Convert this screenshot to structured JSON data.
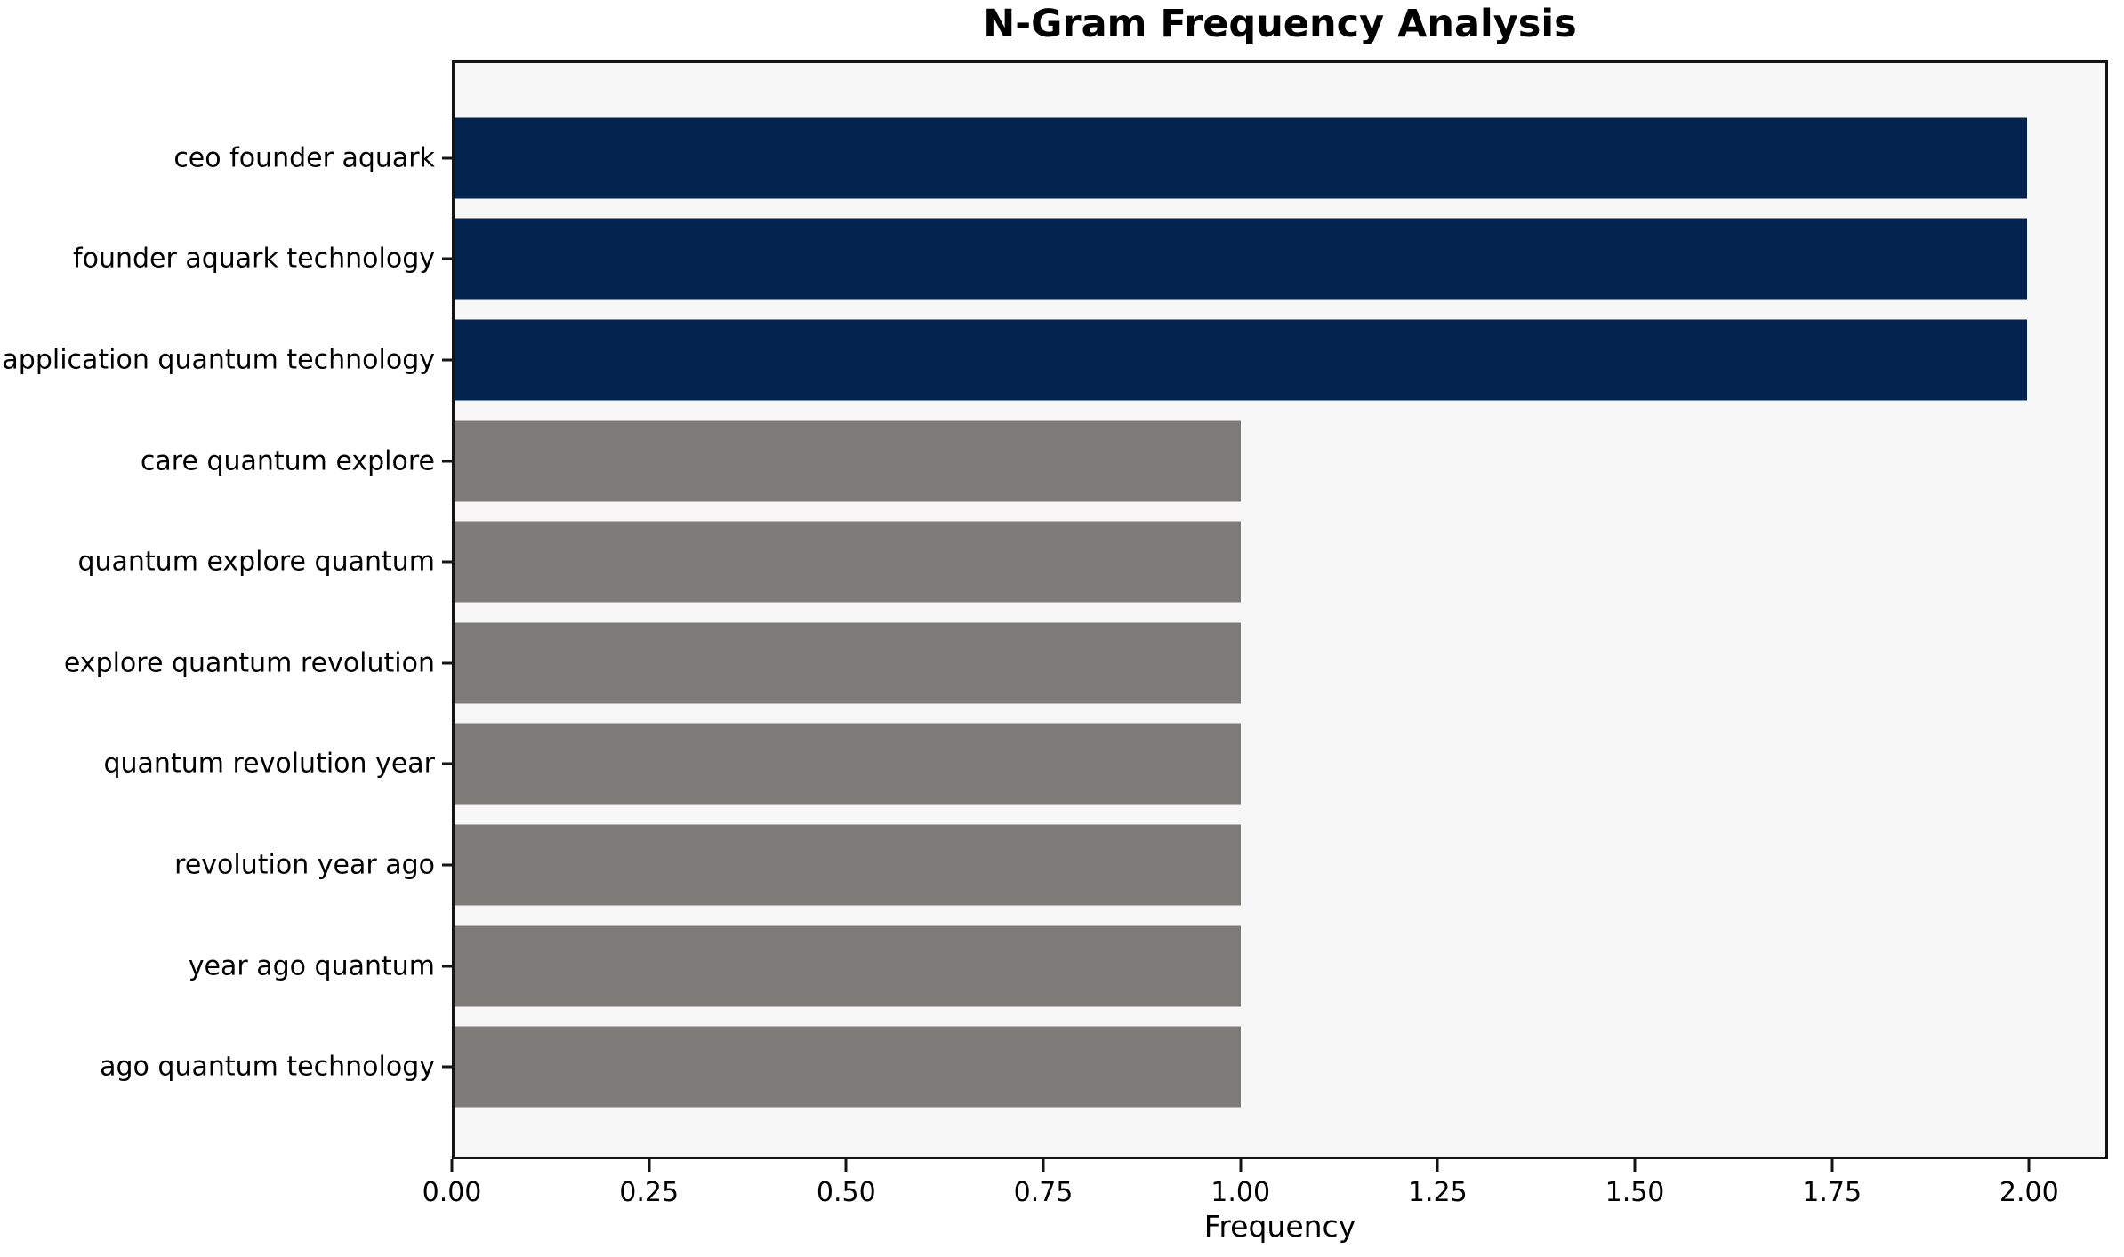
{
  "chart_data": {
    "type": "bar",
    "orientation": "horizontal",
    "title": "N-Gram Frequency Analysis",
    "xlabel": "Frequency",
    "ylabel": "",
    "categories": [
      "ceo founder aquark",
      "founder aquark technology",
      "application quantum technology",
      "care quantum explore",
      "quantum explore quantum",
      "explore quantum revolution",
      "quantum revolution year",
      "revolution year ago",
      "year ago quantum",
      "ago quantum technology"
    ],
    "values": [
      2,
      2,
      2,
      1,
      1,
      1,
      1,
      1,
      1,
      1
    ],
    "bar_colors": [
      "#02234e",
      "#02234e",
      "#02234e",
      "#7c7b77",
      "#7c7b77",
      "#7c7b77",
      "#7c7b77",
      "#7c7b77",
      "#7c7b77",
      "#7c7b77"
    ],
    "xlim": [
      0,
      2.1
    ],
    "xticks": [
      0,
      0.25,
      0.5,
      0.75,
      1,
      1.25,
      1.5,
      1.75,
      2
    ],
    "xtick_labels": [
      "0.00",
      "0.25",
      "0.50",
      "0.75",
      "1.00",
      "1.25",
      "1.50",
      "1.75",
      "2.00"
    ],
    "grid": false,
    "legend": "none",
    "plot_background": "#f7f7f7",
    "figure_background": "#ffffff",
    "highlight_color": "#02234e",
    "default_color": "#7c7b77"
  }
}
